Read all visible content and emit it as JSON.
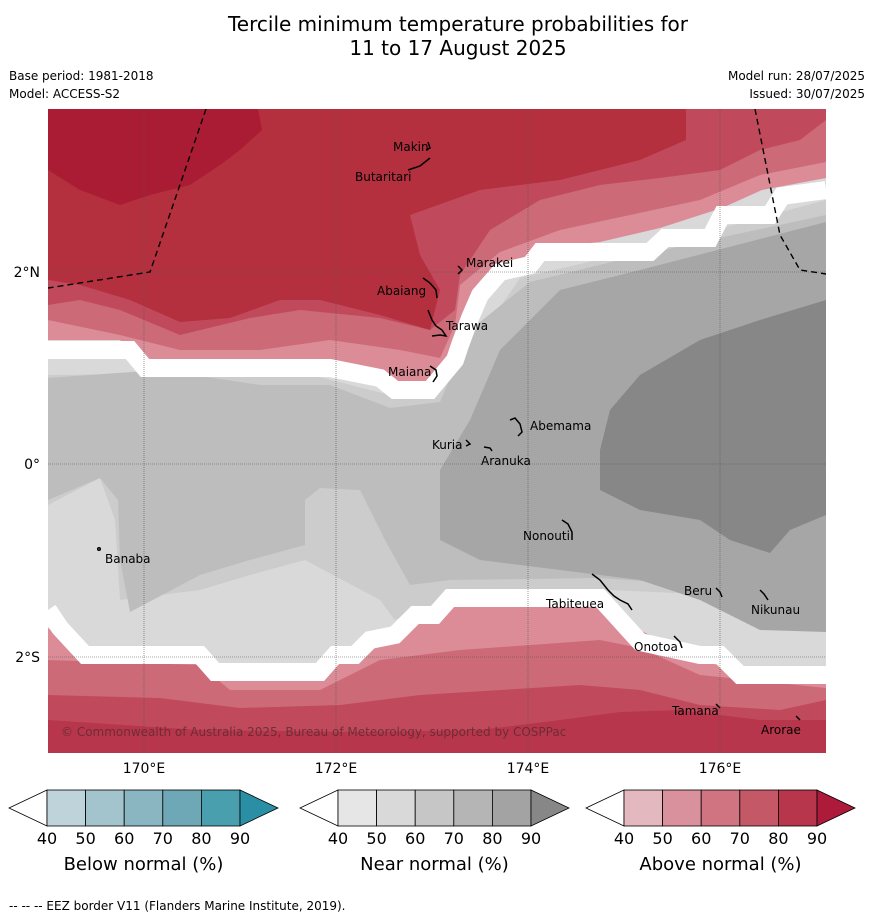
{
  "title_line1": "Tercile minimum temperature probabilities for",
  "title_line2": "11 to 17 August 2025",
  "base_period": "Base period: 1981-2018",
  "model": "Model: ACCESS-S2",
  "model_run": "Model run: 28/07/2025",
  "issued": "Issued: 30/07/2025",
  "map": {
    "lon_labels": [
      "170°E",
      "172°E",
      "174°E",
      "176°E"
    ],
    "lat_labels": [
      "2°N",
      "0°",
      "2°S"
    ],
    "copyright": "© Commonwealth of Australia 2025, Bureau of Meteorology, supported by COSPPac",
    "places": [
      "Makin",
      "Butaritari",
      "Marakei",
      "Abaiang",
      "Tarawa",
      "Maiana",
      "Abemama",
      "Kuria",
      "Aranuka",
      "Banaba",
      "Nonouti",
      "Tabiteuea",
      "Beru",
      "Nikunau",
      "Onotoa",
      "Tamana",
      "Arorae"
    ],
    "colors": {
      "near_40": "#d9d9d9",
      "near_50": "#cccccc",
      "near_60": "#bdbdbd",
      "near_70": "#a6a6a6",
      "near_80": "#878787",
      "above_50": "#dc8c96",
      "above_60": "#cd6a78",
      "above_70": "#c04a5c",
      "above_80": "#b4303f",
      "above_90": "#a91c33"
    }
  },
  "legends": [
    {
      "title": "Below normal (%)",
      "ticks": [
        "40",
        "50",
        "60",
        "70",
        "80",
        "90"
      ],
      "colors": [
        "#bed3da",
        "#a3c4cc",
        "#8ab6c1",
        "#6ea8b7",
        "#4a9faf"
      ],
      "arrow": "#2a8fa5"
    },
    {
      "title": "Near normal (%)",
      "ticks": [
        "40",
        "50",
        "60",
        "70",
        "80",
        "90"
      ],
      "colors": [
        "#e6e6e6",
        "#d9d9d9",
        "#c6c6c6",
        "#b5b5b5",
        "#a3a3a3"
      ],
      "arrow": "#878787"
    },
    {
      "title": "Above normal (%)",
      "ticks": [
        "40",
        "50",
        "60",
        "70",
        "80",
        "90"
      ],
      "colors": [
        "#e4b8bf",
        "#d9929d",
        "#cf7480",
        "#c45867",
        "#b8364c"
      ],
      "arrow": "#ad1a3a"
    }
  ],
  "footnote": "--  --  -- EEZ border V11 (Flanders Marine Institute, 2019)."
}
